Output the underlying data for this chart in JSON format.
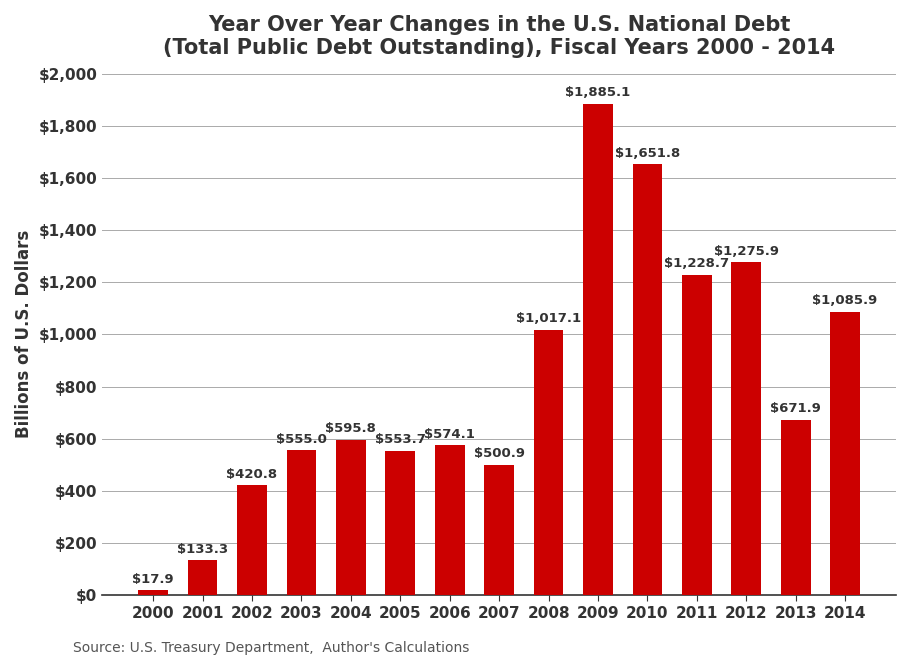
{
  "title_line1": "Year Over Year Changes in the U.S. National Debt",
  "title_line2": "(Total Public Debt Outstanding), Fiscal Years 2000 - 2014",
  "ylabel": "Billions of U.S. Dollars",
  "source": "Source: U.S. Treasury Department,  Author's Calculations",
  "categories": [
    "2000",
    "2001",
    "2002",
    "2003",
    "2004",
    "2005",
    "2006",
    "2007",
    "2008",
    "2009",
    "2010",
    "2011",
    "2012",
    "2013",
    "2014"
  ],
  "values": [
    17.9,
    133.3,
    420.8,
    555.0,
    595.8,
    553.7,
    574.1,
    500.9,
    1017.1,
    1885.1,
    1651.8,
    1228.7,
    1275.9,
    671.9,
    1085.9
  ],
  "labels": [
    "$17.9",
    "$133.3",
    "$420.8",
    "$555.0",
    "$595.8",
    "$553.7",
    "$574.1",
    "$500.9",
    "$1,017.1",
    "$1,885.1",
    "$1,651.8",
    "$1,228.7",
    "$1,275.9",
    "$671.9",
    "$1,085.9"
  ],
  "bar_color": "#CC0000",
  "background_color": "#FFFFFF",
  "ylim": [
    0,
    2000
  ],
  "yticks": [
    0,
    200,
    400,
    600,
    800,
    1000,
    1200,
    1400,
    1600,
    1800,
    2000
  ],
  "ytick_labels": [
    "$0",
    "$200",
    "$400",
    "$600",
    "$800",
    "$1,000",
    "$1,200",
    "$1,400",
    "$1,600",
    "$1,800",
    "$2,000"
  ],
  "grid_color": "#AAAAAA",
  "title_fontsize": 15,
  "label_fontsize": 9.5,
  "ylabel_fontsize": 12,
  "tick_fontsize": 11,
  "source_fontsize": 10
}
